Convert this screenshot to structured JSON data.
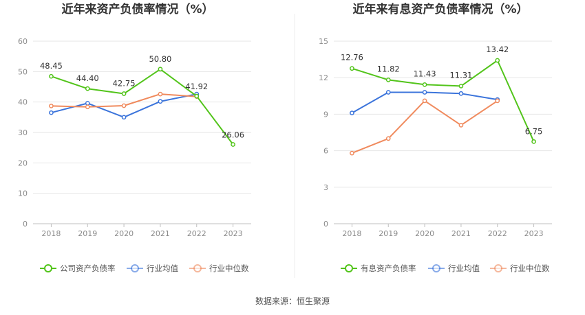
{
  "source": "数据来源：恒生聚源",
  "chart_data": [
    {
      "type": "line",
      "title": "近年来资产负债率情况（%）",
      "categories": [
        "2018",
        "2019",
        "2020",
        "2021",
        "2022",
        "2023"
      ],
      "yticks": [
        "0",
        "10",
        "20",
        "30",
        "40",
        "50",
        "60"
      ],
      "ylim": [
        0,
        60
      ],
      "grid": true,
      "legend_position": "bottom",
      "series": [
        {
          "name": "公司资产负债率",
          "color": "#52c41a",
          "values": [
            48.45,
            44.4,
            42.75,
            50.8,
            41.92,
            26.06
          ],
          "labels": [
            "48.45",
            "44.40",
            "42.75",
            "50.80",
            "41.92",
            "26.06"
          ]
        },
        {
          "name": "行业均值",
          "color": "#3b74db",
          "values": [
            36.5,
            39.6,
            35.0,
            40.2,
            42.6,
            null
          ]
        },
        {
          "name": "行业中位数",
          "color": "#f08a5d",
          "values": [
            38.7,
            38.4,
            38.8,
            42.6,
            41.8,
            null
          ]
        }
      ]
    },
    {
      "type": "line",
      "title": "近年来有息资产负债率情况（%）",
      "categories": [
        "2018",
        "2019",
        "2020",
        "2021",
        "2022",
        "2023"
      ],
      "yticks": [
        "0",
        "3",
        "6",
        "9",
        "12",
        "15"
      ],
      "ylim": [
        0,
        15
      ],
      "grid": true,
      "legend_position": "bottom",
      "series": [
        {
          "name": "有息资产负债率",
          "color": "#52c41a",
          "values": [
            12.76,
            11.82,
            11.43,
            11.31,
            13.42,
            6.75
          ],
          "labels": [
            "12.76",
            "11.82",
            "11.43",
            "11.31",
            "13.42",
            "6.75"
          ]
        },
        {
          "name": "行业均值",
          "color": "#3b74db",
          "values": [
            9.1,
            10.8,
            10.8,
            10.7,
            10.2,
            null
          ]
        },
        {
          "name": "行业中位数",
          "color": "#f08a5d",
          "values": [
            5.8,
            7.0,
            10.1,
            8.1,
            10.1,
            null
          ]
        }
      ]
    }
  ]
}
